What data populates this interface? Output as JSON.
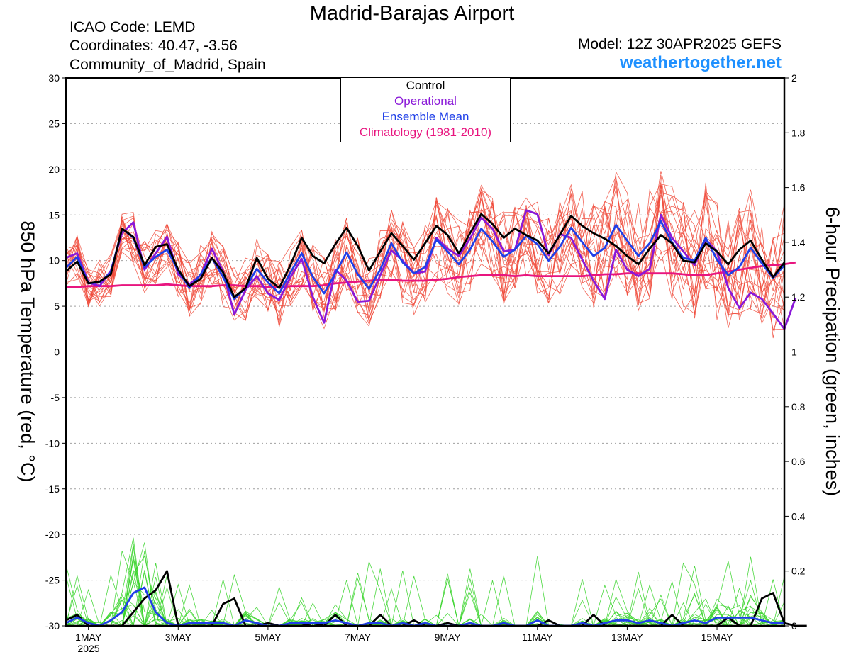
{
  "header": {
    "title": "Madrid-Barajas Airport",
    "icao": "ICAO Code: LEMD",
    "coords": "Coordinates: 40.47, -3.56",
    "region": "Community_of_Madrid, Spain",
    "model": "Model: 12Z 30APR2025 GEFS",
    "site": "weathertogether.net"
  },
  "legend": {
    "items": [
      {
        "label": "Control",
        "color": "#000000"
      },
      {
        "label": "Operational",
        "color": "#8a18d8"
      },
      {
        "label": "Ensemble Mean",
        "color": "#1f3fe8"
      },
      {
        "label": "Climatology (1981-2010)",
        "color": "#e8157f"
      }
    ]
  },
  "axes": {
    "left_label": "850 hPa Temperature (red, °C)",
    "right_label": "6-hour Precipation (green, inches)",
    "year": "2025"
  },
  "chart_data": {
    "type": "line",
    "x_unit": "hours since 30APR2025 12Z (6-hour steps)",
    "x_ticks": [
      {
        "label": "1MAY",
        "value": 12
      },
      {
        "label": "3MAY",
        "value": 60
      },
      {
        "label": "5MAY",
        "value": 108
      },
      {
        "label": "7MAY",
        "value": 156
      },
      {
        "label": "9MAY",
        "value": 204
      },
      {
        "label": "11MAY",
        "value": 252
      },
      {
        "label": "13MAY",
        "value": 300
      },
      {
        "label": "15MAY",
        "value": 348
      }
    ],
    "xlim": [
      0,
      384
    ],
    "y_left": {
      "label": "850 hPa Temperature (red, °C)",
      "lim": [
        -30,
        30
      ],
      "ticks": [
        30,
        25,
        20,
        15,
        10,
        5,
        0,
        -5,
        -10,
        -15,
        -20,
        -25,
        -30
      ]
    },
    "y_right": {
      "label": "6-hour Precipation (green, inches)",
      "lim": [
        0,
        2
      ],
      "ticks": [
        2,
        1.8,
        1.6,
        1.4,
        1.2,
        1,
        0.8,
        0.6,
        0.4,
        0.2,
        0
      ]
    },
    "temperature_series": [
      {
        "name": "Control",
        "color": "#000000",
        "values": [
          8.8,
          9.9,
          7.5,
          7.7,
          8.5,
          13.5,
          12.6,
          9.5,
          11.5,
          11.8,
          9.0,
          7.2,
          8.0,
          10.3,
          8.7,
          6.0,
          7.0,
          10.3,
          8.0,
          7.0,
          9.5,
          12.5,
          10.5,
          9.7,
          11.8,
          13.6,
          11.6,
          8.9,
          11.0,
          13.0,
          11.6,
          10.1,
          11.9,
          13.8,
          12.8,
          10.8,
          13.0,
          15.1,
          14.0,
          12.5,
          13.5,
          12.8,
          12.2,
          10.8,
          12.8,
          14.9,
          13.8,
          13.0,
          12.4,
          11.6,
          10.5,
          9.6,
          11.3,
          12.8,
          11.9,
          10.0,
          9.8,
          11.9,
          11.0,
          9.6,
          11.2,
          12.2,
          10.1,
          8.2,
          9.8
        ]
      },
      {
        "name": "Operational",
        "color": "#8a18d8",
        "values": [
          10.3,
          10.8,
          7.6,
          7.2,
          8.9,
          13.0,
          14.2,
          9.0,
          10.8,
          12.6,
          8.5,
          7.4,
          8.4,
          11.3,
          8.8,
          4.1,
          6.8,
          8.3,
          6.4,
          5.7,
          8.2,
          10.2,
          6.0,
          3.2,
          9.0,
          7.8,
          5.5,
          5.6,
          8.4,
          11.1,
          10.0,
          8.6,
          8.8,
          12.5,
          11.3,
          10.5,
          12.4,
          14.7,
          13.5,
          11.0,
          11.2,
          15.5,
          15.1,
          10.6,
          12.9,
          12.5,
          10.1,
          7.8,
          5.8,
          11.2,
          9.0,
          8.3,
          9.1,
          15.0,
          12.5,
          11.0,
          9.5,
          12.3,
          11.0,
          7.0,
          4.8,
          6.5,
          5.8,
          4.2,
          2.5,
          5.9
        ]
      },
      {
        "name": "Ensemble Mean",
        "color": "#1f3fe8",
        "values": [
          9.2,
          10.4,
          7.5,
          7.6,
          8.7,
          13.5,
          12.5,
          9.3,
          10.4,
          11.2,
          8.9,
          7.0,
          8.5,
          10.3,
          8.2,
          5.8,
          7.0,
          9.1,
          7.6,
          6.4,
          8.7,
          10.8,
          8.2,
          6.4,
          8.6,
          10.9,
          8.5,
          6.9,
          9.0,
          11.9,
          9.8,
          8.6,
          9.3,
          12.3,
          11.0,
          9.6,
          11.2,
          13.5,
          12.1,
          10.4,
          11.2,
          12.7,
          11.8,
          10.0,
          11.5,
          13.6,
          12.0,
          10.5,
          11.4,
          13.9,
          12.2,
          10.5,
          11.9,
          14.3,
          12.0,
          10.3,
          10.0,
          12.5,
          10.1,
          8.4,
          9.3,
          11.4,
          9.7,
          8.1,
          9.5
        ]
      },
      {
        "name": "Climatology (1981-2010)",
        "color": "#e8157f",
        "values": [
          7.1,
          7.1,
          7.2,
          7.2,
          7.2,
          7.3,
          7.3,
          7.3,
          7.3,
          7.4,
          7.3,
          7.2,
          7.2,
          7.2,
          7.3,
          7.3,
          7.2,
          7.2,
          7.1,
          7.1,
          7.2,
          7.2,
          7.2,
          7.3,
          7.5,
          7.6,
          7.7,
          7.8,
          7.9,
          7.9,
          7.8,
          7.8,
          7.8,
          7.9,
          8.0,
          8.2,
          8.3,
          8.4,
          8.4,
          8.4,
          8.3,
          8.4,
          8.3,
          8.3,
          8.3,
          8.3,
          8.3,
          8.4,
          8.5,
          8.5,
          8.6,
          8.6,
          8.6,
          8.6,
          8.6,
          8.5,
          8.4,
          8.4,
          8.6,
          8.8,
          9.0,
          9.2,
          9.4,
          9.5,
          9.6,
          9.8
        ]
      }
    ],
    "precipitation_series": [
      {
        "name": "Control",
        "color": "#000000",
        "values": [
          0.02,
          0.04,
          0.0,
          0.0,
          0.0,
          0.0,
          0.05,
          0.1,
          0.13,
          0.2,
          0.0,
          0.0,
          0.0,
          0.0,
          0.08,
          0.1,
          0.0,
          0.0,
          0.01,
          0.0,
          0.0,
          0.0,
          0.01,
          0.0,
          0.04,
          0.0,
          0.0,
          0.0,
          0.04,
          0.0,
          0.0,
          0.02,
          0.0,
          0.0,
          0.01,
          0.0,
          0.0,
          0.0,
          0.0,
          0.0,
          0.0,
          0.0,
          0.0,
          0.02,
          0.0,
          0.0,
          0.0,
          0.04,
          0.0,
          0.0,
          0.0,
          0.0,
          0.0,
          0.0,
          0.04,
          0.0,
          0.0,
          0.0,
          0.0,
          0.03,
          0.0,
          0.0,
          0.1,
          0.12,
          0.01,
          0.0,
          0.0
        ]
      },
      {
        "name": "Ensemble Mean",
        "color": "#1f3fe8",
        "values": [
          0.01,
          0.03,
          0.01,
          0.0,
          0.02,
          0.05,
          0.12,
          0.14,
          0.05,
          0.01,
          0.0,
          0.01,
          0.01,
          0.01,
          0.01,
          0.0,
          0.02,
          0.01,
          0.0,
          0.0,
          0.01,
          0.01,
          0.01,
          0.01,
          0.02,
          0.01,
          0.0,
          0.01,
          0.01,
          0.0,
          0.01,
          0.0,
          0.01,
          0.0,
          0.0,
          0.0,
          0.01,
          0.0,
          0.0,
          0.01,
          0.0,
          0.0,
          0.02,
          0.0,
          0.0,
          0.0,
          0.01,
          0.0,
          0.01,
          0.02,
          0.02,
          0.01,
          0.02,
          0.01,
          0.0,
          0.01,
          0.02,
          0.01,
          0.03,
          0.03,
          0.03,
          0.03,
          0.02,
          0.01,
          0.01
        ]
      }
    ]
  }
}
